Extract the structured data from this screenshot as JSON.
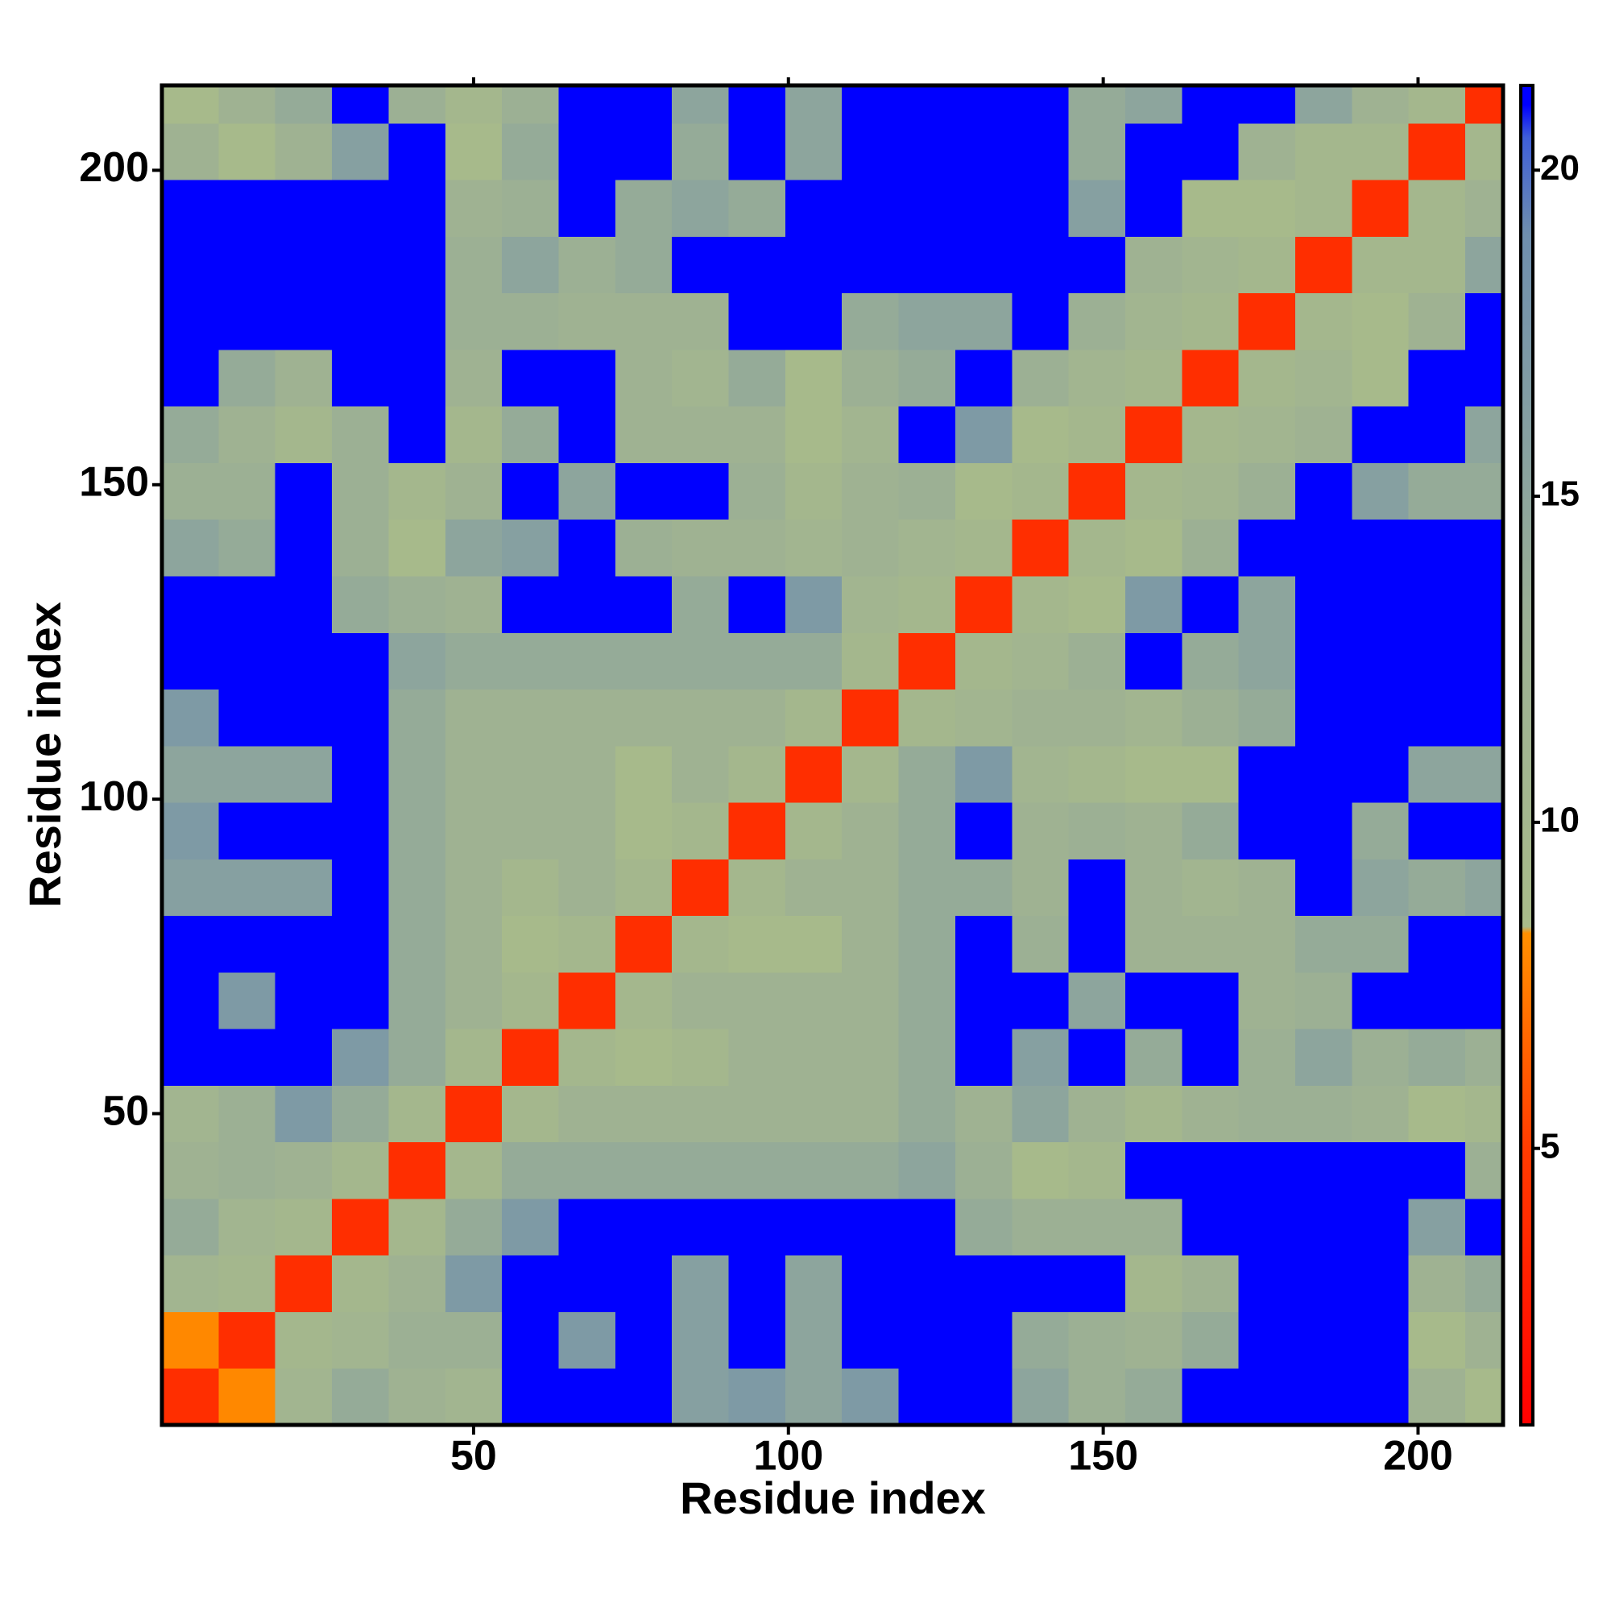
{
  "chart_data": {
    "type": "heatmap",
    "x_label": "Residue index",
    "y_label": "Residue index",
    "xlim": [
      0.5,
      213.5
    ],
    "ylim": [
      0.5,
      213.5
    ],
    "xticks": [
      50,
      100,
      150,
      200
    ],
    "yticks": [
      50,
      100,
      150,
      200
    ],
    "x_bins": [
      0.5,
      9.5,
      18.5,
      27.5,
      36.5,
      45.5,
      54.5,
      63.5,
      72.5,
      81.5,
      90.5,
      99.5,
      108.5,
      117.5,
      126.5,
      135.5,
      144.5,
      153.5,
      162.5,
      171.5,
      180.5,
      189.5,
      198.5,
      207.5,
      213.5
    ],
    "y_bins": [
      0.5,
      9.5,
      18.5,
      27.5,
      36.5,
      45.5,
      54.5,
      63.5,
      72.5,
      81.5,
      90.5,
      99.5,
      108.5,
      117.5,
      126.5,
      135.5,
      144.5,
      153.5,
      162.5,
      171.5,
      180.5,
      189.5,
      198.5,
      207.5,
      213.5
    ],
    "values": [
      [
        4,
        8,
        11,
        14,
        12,
        11,
        21,
        21,
        21,
        16,
        17,
        15,
        17,
        21,
        21,
        15,
        13,
        14,
        21,
        21,
        21,
        21,
        12,
        9
      ],
      [
        8,
        4,
        10,
        11,
        13,
        13,
        21,
        17,
        21,
        16,
        21,
        15,
        21,
        21,
        21,
        14,
        13,
        12,
        14,
        21,
        21,
        21,
        9,
        12
      ],
      [
        11,
        10,
        4,
        10,
        12,
        17,
        21,
        21,
        21,
        16,
        21,
        15,
        21,
        21,
        21,
        21,
        21,
        10,
        12,
        21,
        21,
        21,
        12,
        14
      ],
      [
        14,
        11,
        10,
        4,
        10,
        14,
        17,
        21,
        21,
        21,
        21,
        21,
        21,
        21,
        14,
        13,
        13,
        13,
        21,
        21,
        21,
        21,
        16,
        21
      ],
      [
        12,
        13,
        12,
        10,
        4,
        10,
        14,
        14,
        14,
        14,
        14,
        14,
        14,
        15,
        13,
        9,
        10,
        21,
        21,
        21,
        21,
        21,
        21,
        13
      ],
      [
        11,
        13,
        17,
        14,
        10,
        4,
        10,
        12,
        12,
        12,
        12,
        12,
        12,
        14,
        12,
        15,
        12,
        10,
        12,
        13,
        13,
        12,
        9,
        10
      ],
      [
        21,
        21,
        21,
        17,
        14,
        10,
        4,
        10,
        9,
        10,
        12,
        12,
        12,
        14,
        21,
        16,
        21,
        14,
        21,
        13,
        15,
        13,
        14,
        13
      ],
      [
        21,
        17,
        21,
        21,
        14,
        12,
        10,
        4,
        10,
        12,
        12,
        12,
        12,
        14,
        21,
        21,
        15,
        21,
        21,
        12,
        13,
        21,
        21,
        21
      ],
      [
        21,
        21,
        21,
        21,
        14,
        12,
        9,
        10,
        4,
        10,
        9,
        9,
        12,
        14,
        21,
        13,
        21,
        12,
        12,
        12,
        14,
        14,
        21,
        21
      ],
      [
        16,
        16,
        16,
        21,
        14,
        12,
        10,
        12,
        10,
        4,
        10,
        12,
        12,
        14,
        14,
        12,
        21,
        12,
        11,
        12,
        21,
        15,
        14,
        15
      ],
      [
        17,
        21,
        21,
        21,
        14,
        12,
        12,
        12,
        9,
        10,
        4,
        10,
        12,
        14,
        21,
        12,
        13,
        12,
        14,
        21,
        21,
        14,
        21,
        21
      ],
      [
        15,
        15,
        15,
        21,
        14,
        12,
        12,
        12,
        9,
        12,
        10,
        4,
        10,
        14,
        17,
        11,
        10,
        9,
        9,
        21,
        21,
        21,
        15,
        15
      ],
      [
        17,
        21,
        21,
        21,
        14,
        12,
        12,
        12,
        12,
        12,
        12,
        10,
        4,
        10,
        11,
        12,
        12,
        11,
        13,
        14,
        21,
        21,
        21,
        21
      ],
      [
        21,
        21,
        21,
        21,
        15,
        14,
        14,
        14,
        14,
        14,
        14,
        14,
        10,
        4,
        10,
        11,
        13,
        21,
        14,
        15,
        21,
        21,
        21,
        21
      ],
      [
        21,
        21,
        21,
        14,
        13,
        12,
        21,
        21,
        21,
        14,
        21,
        17,
        11,
        10,
        4,
        10,
        9,
        17,
        21,
        15,
        21,
        21,
        21,
        21
      ],
      [
        15,
        14,
        21,
        13,
        9,
        15,
        16,
        21,
        13,
        12,
        12,
        11,
        12,
        11,
        10,
        4,
        10,
        9,
        13,
        21,
        21,
        21,
        21,
        21
      ],
      [
        13,
        13,
        21,
        13,
        10,
        12,
        21,
        15,
        21,
        21,
        13,
        10,
        12,
        13,
        9,
        10,
        4,
        10,
        11,
        13,
        21,
        16,
        14,
        14
      ],
      [
        14,
        12,
        10,
        13,
        21,
        10,
        14,
        21,
        12,
        12,
        12,
        9,
        11,
        21,
        17,
        9,
        10,
        4,
        10,
        11,
        12,
        21,
        21,
        15
      ],
      [
        21,
        14,
        12,
        21,
        21,
        12,
        21,
        21,
        12,
        11,
        14,
        9,
        13,
        14,
        21,
        13,
        11,
        10,
        4,
        10,
        11,
        9,
        21,
        21
      ],
      [
        21,
        21,
        21,
        21,
        21,
        13,
        13,
        12,
        12,
        12,
        21,
        21,
        14,
        15,
        15,
        21,
        13,
        11,
        10,
        4,
        10,
        9,
        12,
        21
      ],
      [
        21,
        21,
        21,
        21,
        21,
        13,
        15,
        13,
        14,
        21,
        21,
        21,
        21,
        21,
        21,
        21,
        21,
        12,
        11,
        10,
        4,
        10,
        10,
        15
      ],
      [
        21,
        21,
        21,
        21,
        21,
        12,
        13,
        21,
        14,
        15,
        14,
        21,
        21,
        21,
        21,
        21,
        16,
        21,
        9,
        9,
        10,
        4,
        10,
        12
      ],
      [
        12,
        9,
        12,
        16,
        21,
        9,
        14,
        21,
        21,
        14,
        21,
        15,
        21,
        21,
        21,
        21,
        14,
        21,
        21,
        12,
        10,
        10,
        4,
        10
      ],
      [
        9,
        12,
        14,
        21,
        13,
        10,
        13,
        21,
        21,
        15,
        21,
        15,
        21,
        21,
        21,
        21,
        14,
        15,
        21,
        21,
        15,
        12,
        10,
        4
      ]
    ],
    "colorscale": [
      [
        0.76,
        "#ff0000"
      ],
      [
        5,
        "#ff3c00"
      ],
      [
        8.3,
        "#ff9000"
      ],
      [
        8.4,
        "#a9bb8a"
      ],
      [
        13,
        "#9cb094"
      ],
      [
        19,
        "#6f8fae"
      ],
      [
        20.5,
        "#3f5fd8"
      ],
      [
        21,
        "#0000ff"
      ]
    ],
    "clim": [
      0.76,
      21.3
    ],
    "cticks": [
      5,
      10,
      15,
      20
    ]
  }
}
